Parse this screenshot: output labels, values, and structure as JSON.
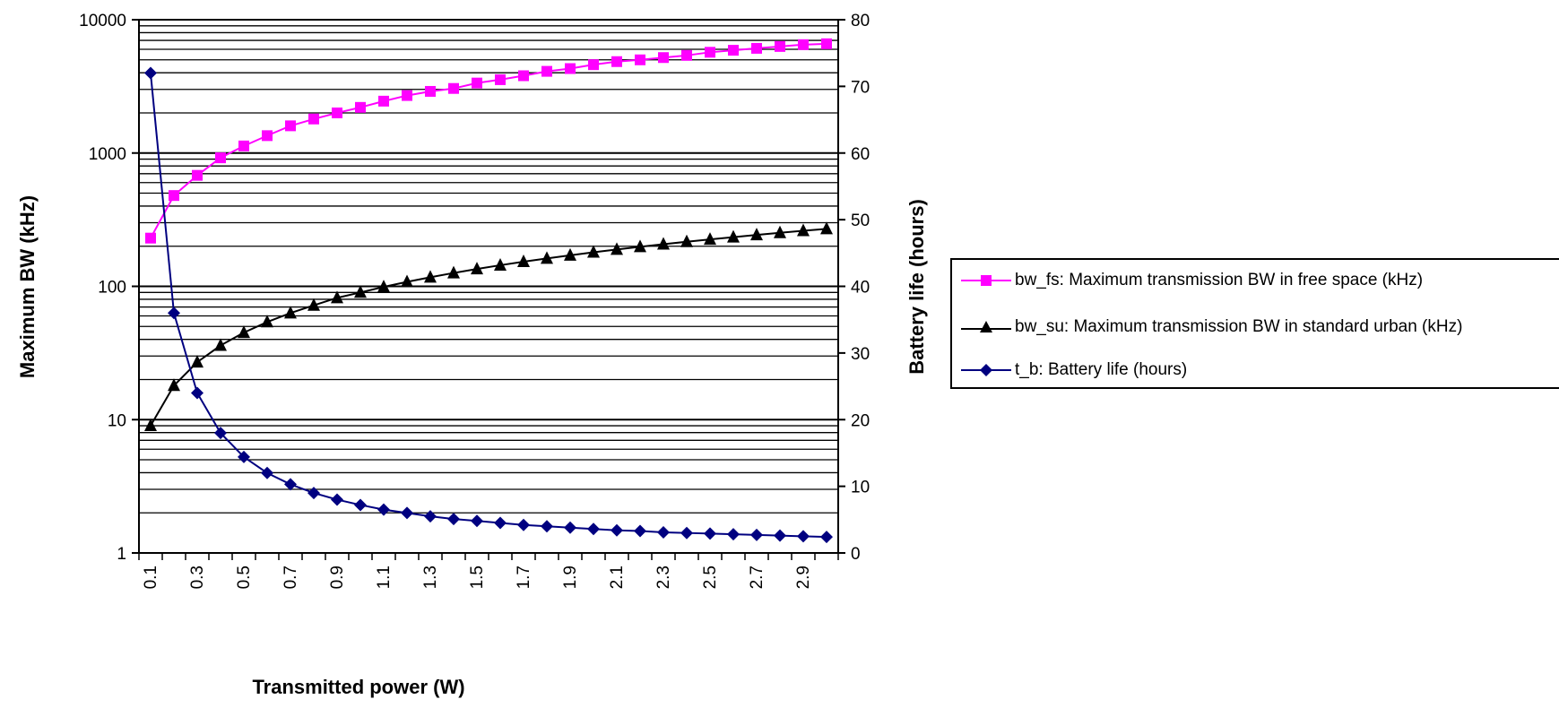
{
  "chart_data": {
    "type": "line",
    "title": "",
    "xlabel": "Transmitted power (W)",
    "ylabel_left": "Maximum BW (kHz)",
    "ylabel_right": "Battery life (hours)",
    "x": [
      0.1,
      0.2,
      0.3,
      0.4,
      0.5,
      0.6,
      0.7,
      0.8,
      0.9,
      1.0,
      1.1,
      1.2,
      1.3,
      1.4,
      1.5,
      1.6,
      1.7,
      1.8,
      1.9,
      2.0,
      2.1,
      2.2,
      2.3,
      2.4,
      2.5,
      2.6,
      2.7,
      2.8,
      2.9,
      3.0
    ],
    "x_tick_labels": [
      "0.1",
      "0.3",
      "0.5",
      "0.7",
      "0.9",
      "1.1",
      "1.3",
      "1.5",
      "1.7",
      "1.9",
      "2.1",
      "2.3",
      "2.5",
      "2.7",
      "2.9"
    ],
    "y_left": {
      "scale": "log",
      "range": [
        1,
        10000
      ],
      "tick_labels": [
        "1",
        "10",
        "100",
        "1000",
        "10000"
      ]
    },
    "y_right": {
      "scale": "linear",
      "range": [
        0,
        80
      ],
      "tick_labels": [
        "0",
        "10",
        "20",
        "30",
        "40",
        "50",
        "60",
        "70",
        "80"
      ]
    },
    "grid": true,
    "legend_position": "right",
    "series": [
      {
        "name": "bw_fs: Maximum transmission BW in free space (kHz)",
        "axis": "left",
        "color": "#ff00ff",
        "marker": "square",
        "values": [
          230,
          480,
          680,
          920,
          1130,
          1350,
          1600,
          1800,
          2000,
          2200,
          2450,
          2700,
          2900,
          3050,
          3350,
          3550,
          3800,
          4100,
          4300,
          4600,
          4850,
          5000,
          5200,
          5400,
          5700,
          5900,
          6100,
          6300,
          6500,
          6600
        ]
      },
      {
        "name": "bw_su: Maximum transmission BW in standard urban (kHz)",
        "axis": "left",
        "color": "#000000",
        "marker": "triangle",
        "values": [
          9,
          18,
          27,
          36,
          45,
          54,
          63,
          72,
          82,
          90,
          99,
          108,
          117,
          126,
          135,
          144,
          153,
          162,
          171,
          180,
          189,
          198,
          207,
          216,
          225,
          234,
          243,
          252,
          261,
          270
        ]
      },
      {
        "name": "t_b: Battery life (hours)",
        "axis": "right",
        "color": "#000080",
        "marker": "diamond",
        "values": [
          72,
          36,
          24,
          18,
          14.4,
          12,
          10.3,
          9,
          8,
          7.2,
          6.5,
          6,
          5.5,
          5.1,
          4.8,
          4.5,
          4.2,
          4,
          3.8,
          3.6,
          3.4,
          3.3,
          3.1,
          3,
          2.9,
          2.8,
          2.7,
          2.6,
          2.5,
          2.4
        ]
      }
    ]
  }
}
